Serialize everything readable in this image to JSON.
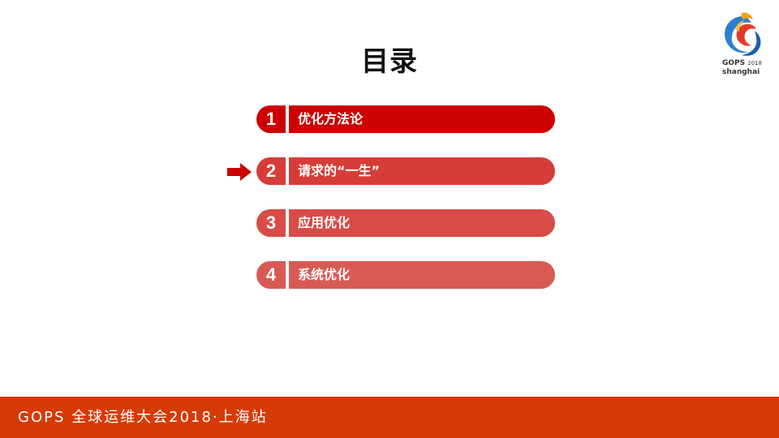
{
  "slide": {
    "title": "目录",
    "logo": {
      "brand": "GOPS",
      "year": "2018",
      "city": "shanghai"
    },
    "toc": [
      {
        "number": "1",
        "label": "优化方法论",
        "color": "#cc0000"
      },
      {
        "number": "2",
        "label": "请求的“一生”",
        "color": "#d63c38"
      },
      {
        "number": "3",
        "label": "应用优化",
        "color": "#d84b47"
      },
      {
        "number": "4",
        "label": "系统优化",
        "color": "#d85a55"
      }
    ],
    "current_item_indicator": "arrow-right-icon",
    "footer": {
      "text": "GOPS 全球运维大会2018·上海站",
      "color": "#d63a06"
    }
  }
}
